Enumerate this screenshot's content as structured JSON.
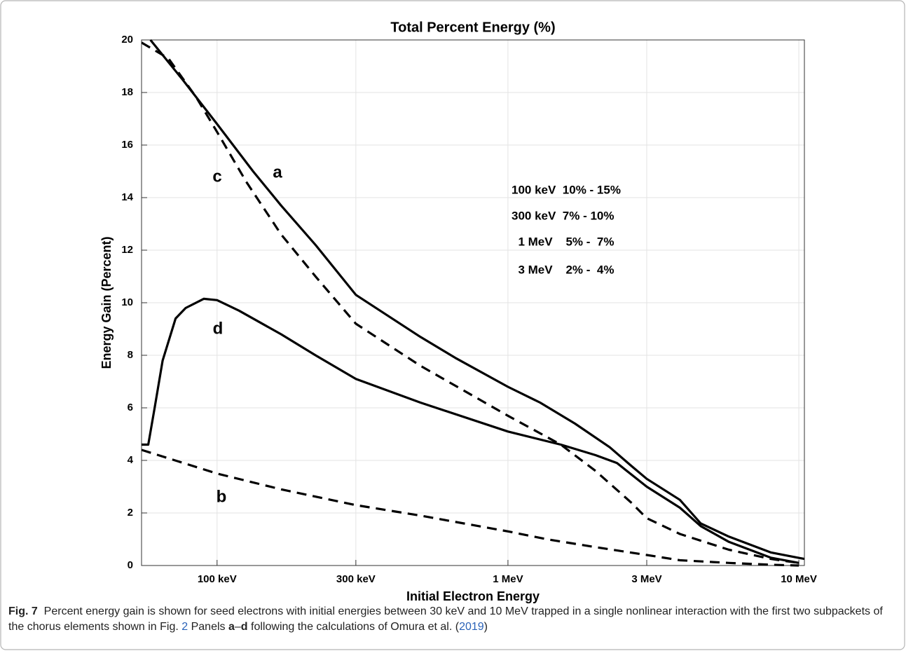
{
  "chart_data": {
    "type": "line",
    "title": "Total Percent Energy (%)",
    "xlabel": "Initial Electron Energy",
    "ylabel": "Energy Gain (Percent)",
    "xscale": "log",
    "xlim": [
      55,
      10450
    ],
    "xticks": [
      {
        "value": 100,
        "label": "100 keV"
      },
      {
        "value": 300,
        "label": "300 keV"
      },
      {
        "value": 1000,
        "label": "1 MeV"
      },
      {
        "value": 3000,
        "label": "3 MeV"
      },
      {
        "value": 10000,
        "label": "10 MeV"
      }
    ],
    "ylim": [
      0,
      20
    ],
    "yticks": [
      0,
      2,
      4,
      6,
      8,
      10,
      12,
      14,
      16,
      18,
      20
    ],
    "grid": true,
    "series": [
      {
        "name": "a",
        "color": "#000000",
        "style": "solid",
        "x": [
          59,
          76,
          100,
          133,
          166,
          218,
          300,
          500,
          660,
          1000,
          1290,
          1700,
          2240,
          2650,
          3000,
          3900,
          4600,
          5750,
          8000,
          10450
        ],
        "values": [
          20,
          18.5,
          16.8,
          15.0,
          13.7,
          12.2,
          10.3,
          8.7,
          7.9,
          6.8,
          6.2,
          5.4,
          4.5,
          3.8,
          3.3,
          2.5,
          1.6,
          1.1,
          0.5,
          0.25
        ]
      },
      {
        "name": "b",
        "color": "#000000",
        "style": "dashed",
        "x": [
          55,
          100,
          166,
          300,
          500,
          1000,
          1360,
          2000,
          3000,
          3900,
          5750,
          8000,
          10000
        ],
        "values": [
          4.4,
          3.5,
          2.9,
          2.3,
          1.9,
          1.3,
          1.0,
          0.7,
          0.4,
          0.2,
          0.1,
          0.03,
          0
        ]
      },
      {
        "name": "c",
        "color": "#000000",
        "style": "dashed",
        "x": [
          55,
          68,
          85,
          100,
          126,
          166,
          218,
          300,
          500,
          1000,
          1520,
          2000,
          2650,
          3000,
          3900,
          5750,
          8000,
          10000
        ],
        "values": [
          19.9,
          19.3,
          17.8,
          16.5,
          14.6,
          12.6,
          11.0,
          9.2,
          7.6,
          5.7,
          4.6,
          3.6,
          2.4,
          1.8,
          1.2,
          0.6,
          0.25,
          0.1
        ]
      },
      {
        "name": "d",
        "color": "#000000",
        "style": "solid",
        "x": [
          55,
          58,
          61,
          65,
          72,
          78,
          90,
          100,
          119,
          166,
          218,
          300,
          500,
          1000,
          1520,
          2000,
          2370,
          3000,
          3900,
          4600,
          5750,
          8000,
          10000
        ],
        "values": [
          4.6,
          4.6,
          6.0,
          7.8,
          9.4,
          9.8,
          10.15,
          10.1,
          9.7,
          8.8,
          8.0,
          7.1,
          6.2,
          5.1,
          4.6,
          4.2,
          3.9,
          3.0,
          2.2,
          1.5,
          0.9,
          0.3,
          0.1
        ]
      }
    ],
    "annotations": [
      "100 keV  10% - 15%",
      "300 keV  7% - 10%",
      "  1 MeV    5% -  7%",
      "  3 MeV    2% -  4%"
    ]
  },
  "caption": {
    "parts": [
      "Fig. 7",
      "Percent energy gain is shown for seed electrons with initial energies between 30 keV and 10 MeV trapped in a single nonlinear interaction with the first two subpackets of the chorus elements shown in Fig.",
      "2",
      "Panels",
      "a",
      "–",
      "d",
      "following the calculations of Omura et al. (",
      "2019",
      ")"
    ]
  }
}
